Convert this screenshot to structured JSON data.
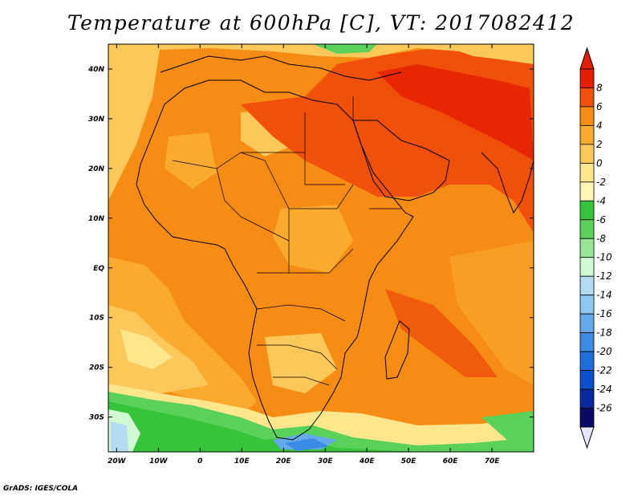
{
  "title": "Temperature at 600hPa [C], VT: 2017082412",
  "credit": "GrADS: IGES/COLA",
  "map": {
    "lon_range": [
      -22,
      80
    ],
    "lat_range": [
      -37,
      45
    ],
    "lon_ticks": [
      "20W",
      "10W",
      "0",
      "10E",
      "20E",
      "30E",
      "40E",
      "50E",
      "60E",
      "70E"
    ],
    "lat_ticks": [
      "40N",
      "30N",
      "20N",
      "10N",
      "EQ",
      "10S",
      "20S",
      "30S"
    ]
  },
  "colorbar": {
    "labels": [
      "8",
      "6",
      "4",
      "2",
      "0",
      "-2",
      "-4",
      "-6",
      "-8",
      "-10",
      "-12",
      "-14",
      "-16",
      "-18",
      "-20",
      "-22",
      "-24",
      "-26"
    ],
    "colors": [
      "#e61e00",
      "#f0500a",
      "#f58c14",
      "#faaa2e",
      "#fcc85a",
      "#fee68c",
      "#fff5b4",
      "#36c43a",
      "#5ad25a",
      "#96e696",
      "#d2fad2",
      "#b4dcf0",
      "#8cc8f0",
      "#64aaeb",
      "#3c8ce6",
      "#1e6edc",
      "#0a50c8",
      "#0a28a0",
      "#0a0a64"
    ],
    "under_color": "#e6e6fa",
    "over_color": "#e61e00"
  }
}
